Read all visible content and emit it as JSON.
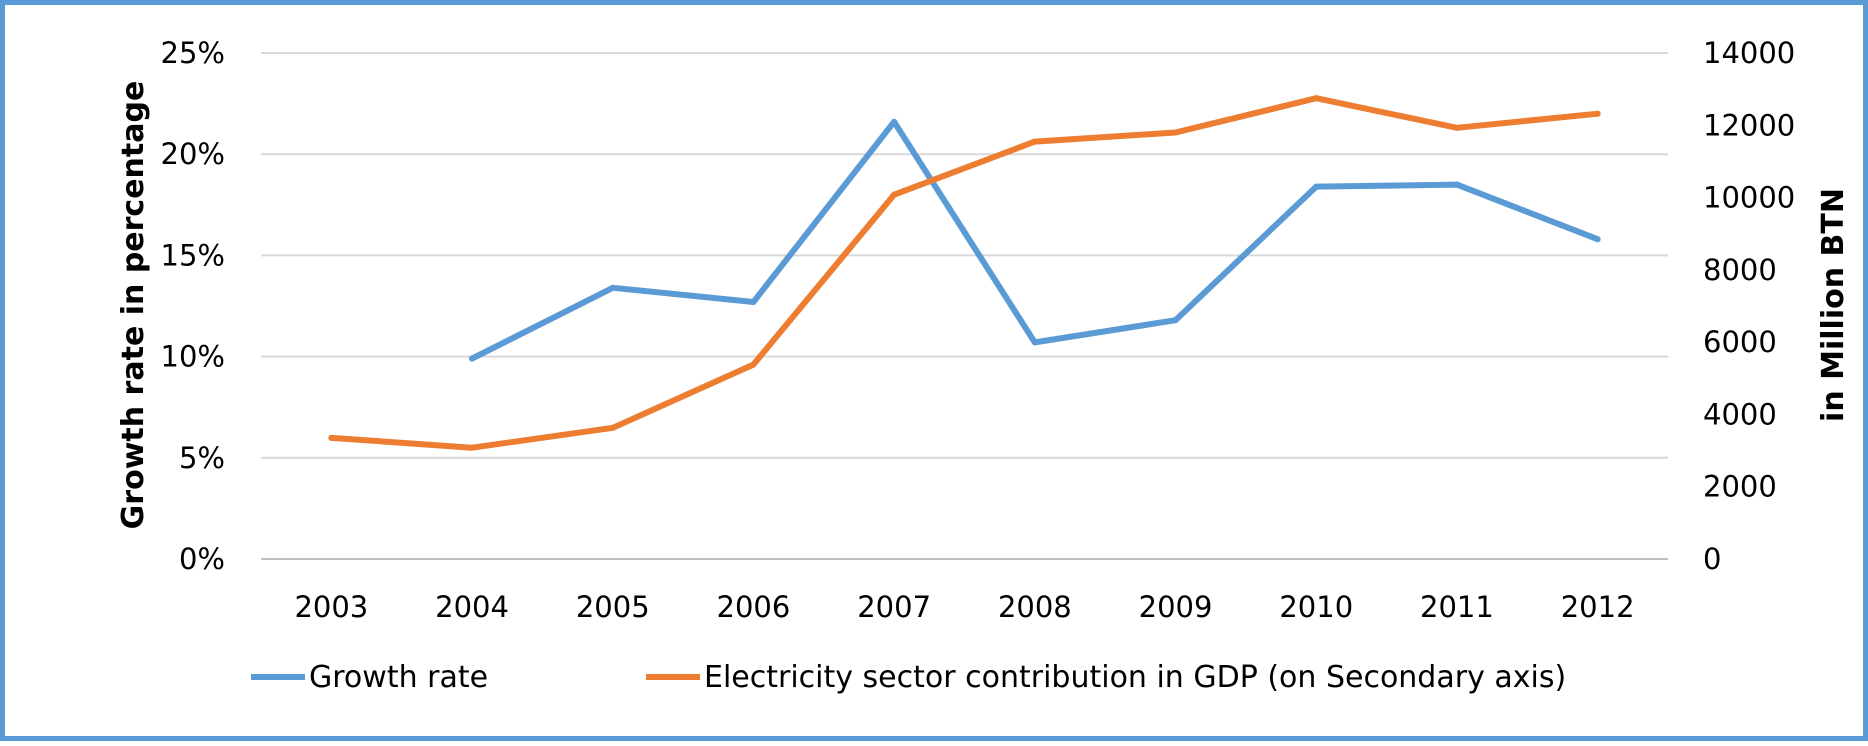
{
  "chart_data": {
    "type": "line",
    "categories": [
      "2003",
      "2004",
      "2005",
      "2006",
      "2007",
      "2008",
      "2009",
      "2010",
      "2011",
      "2012"
    ],
    "series": [
      {
        "name": "Growth rate",
        "axis": "primary",
        "color": "#5b9bd5",
        "values": [
          null,
          9.9,
          13.4,
          12.7,
          21.6,
          10.7,
          11.8,
          18.4,
          18.5,
          15.8
        ]
      },
      {
        "name": "Electricity sector contribution in GDP (on Secondary axis)",
        "axis": "secondary",
        "color": "#ed7d31",
        "values": [
          3350,
          3080,
          3630,
          5380,
          10080,
          11550,
          11800,
          12750,
          11930,
          12320
        ]
      }
    ],
    "y_primary": {
      "label": "Growth rate in percentage",
      "ylim": [
        0,
        25
      ],
      "ticks": [
        "0%",
        "5%",
        "10%",
        "15%",
        "20%",
        "25%"
      ]
    },
    "y_secondary": {
      "label": "in Million BTN",
      "ylim": [
        0,
        14000
      ],
      "ticks": [
        "0",
        "2000",
        "4000",
        "6000",
        "8000",
        "10000",
        "12000",
        "14000"
      ]
    },
    "grid": true,
    "legend_position": "bottom"
  }
}
